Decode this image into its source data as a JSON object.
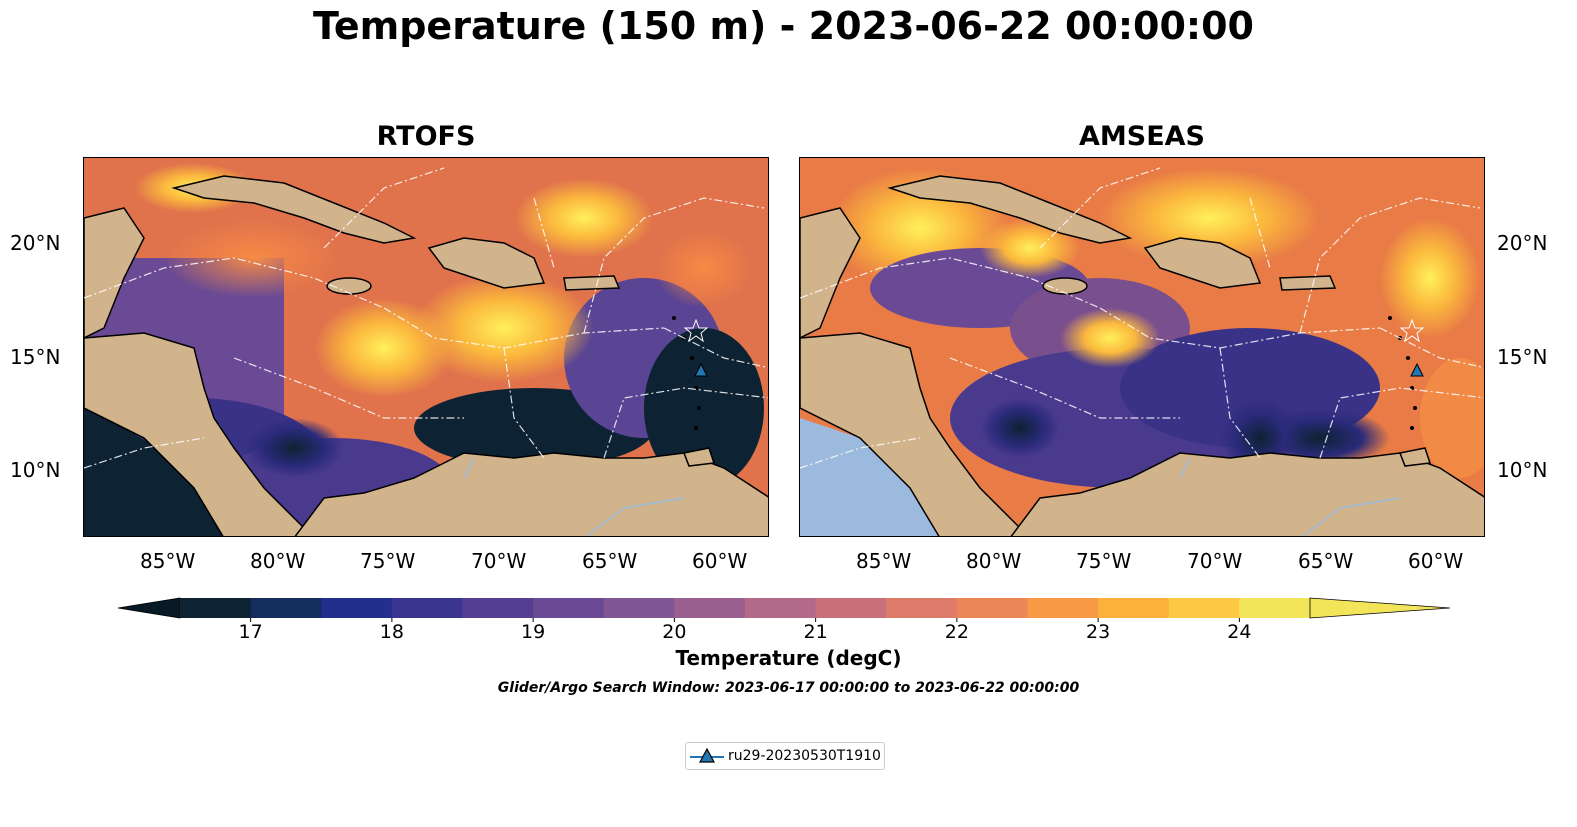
{
  "title": "Temperature (150 m) - 2023-06-22 00:00:00",
  "panels": [
    {
      "title": "RTOFS"
    },
    {
      "title": "AMSEAS"
    }
  ],
  "lat_labels": [
    "20°N",
    "15°N",
    "10°N"
  ],
  "lon_labels": [
    "85°W",
    "80°W",
    "75°W",
    "70°W",
    "65°W",
    "60°W"
  ],
  "colorbar": {
    "label": "Temperature (degC)",
    "ticks": [
      "17",
      "18",
      "19",
      "20",
      "21",
      "22",
      "23",
      "24"
    ],
    "min": 16.5,
    "max": 24.5,
    "step": 0.5,
    "colormap": "thermal",
    "extend": "both"
  },
  "search_window": "Glider/Argo Search Window: 2023-06-17 00:00:00 to 2023-06-22 00:00:00",
  "legend": {
    "label": "ru29-20230530T1910",
    "marker": "triangle",
    "color": "#1f77b4"
  },
  "colors": {
    "land": "#d2b48c",
    "shallow_water": "#9cb9de",
    "eez_lines": "#ffffff"
  },
  "map_extent": {
    "lon": [
      -89,
      -58
    ],
    "lat": [
      7,
      24
    ]
  },
  "glider_position": {
    "lon": -61.2,
    "lat": 14.4
  }
}
